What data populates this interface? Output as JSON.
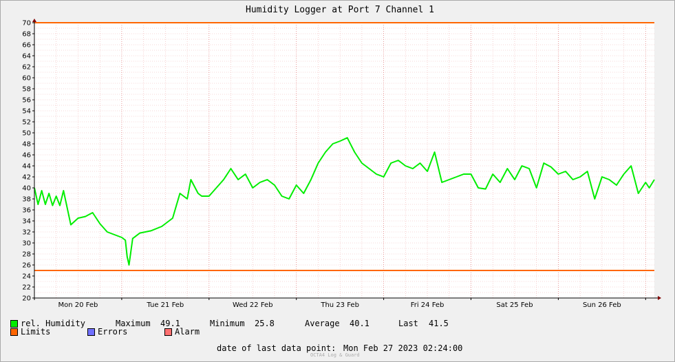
{
  "chart_data": {
    "type": "line",
    "title": "Humidity Logger at Port 7 Channel 1",
    "xlabel": "",
    "ylabel": "",
    "ylim": [
      20,
      70
    ],
    "yticks": [
      20,
      22,
      24,
      26,
      28,
      30,
      32,
      34,
      36,
      38,
      40,
      42,
      44,
      46,
      48,
      50,
      52,
      54,
      56,
      58,
      60,
      62,
      64,
      66,
      68,
      70
    ],
    "x_range": [
      "2023-02-20 00:00",
      "2023-02-27 02:24"
    ],
    "x_tick_labels": [
      {
        "label": "Mon 20 Feb",
        "x": "2023-02-20 12:00"
      },
      {
        "label": "Tue 21 Feb",
        "x": "2023-02-21 12:00"
      },
      {
        "label": "Wed 22 Feb",
        "x": "2023-02-22 12:00"
      },
      {
        "label": "Thu 23 Feb",
        "x": "2023-02-23 12:00"
      },
      {
        "label": "Fri 24 Feb",
        "x": "2023-02-24 12:00"
      },
      {
        "label": "Sat 25 Feb",
        "x": "2023-02-25 12:00"
      },
      {
        "label": "Sun 26 Feb",
        "x": "2023-02-26 12:00"
      }
    ],
    "grid": true,
    "series": [
      {
        "name": "rel. Humidity",
        "color": "#00ee00",
        "x": [
          "2023-02-20 00:00",
          "2023-02-20 01:00",
          "2023-02-20 02:00",
          "2023-02-20 03:00",
          "2023-02-20 04:00",
          "2023-02-20 05:00",
          "2023-02-20 06:00",
          "2023-02-20 07:00",
          "2023-02-20 08:00",
          "2023-02-20 10:00",
          "2023-02-20 12:00",
          "2023-02-20 14:00",
          "2023-02-20 16:00",
          "2023-02-20 18:00",
          "2023-02-20 20:00",
          "2023-02-20 22:00",
          "2023-02-21 00:00",
          "2023-02-21 01:00",
          "2023-02-21 01:30",
          "2023-02-21 02:00",
          "2023-02-21 03:00",
          "2023-02-21 05:00",
          "2023-02-21 08:00",
          "2023-02-21 11:00",
          "2023-02-21 14:00",
          "2023-02-21 16:00",
          "2023-02-21 18:00",
          "2023-02-21 19:00",
          "2023-02-21 21:00",
          "2023-02-21 22:00",
          "2023-02-22 00:00",
          "2023-02-22 02:00",
          "2023-02-22 04:00",
          "2023-02-22 06:00",
          "2023-02-22 08:00",
          "2023-02-22 10:00",
          "2023-02-22 12:00",
          "2023-02-22 14:00",
          "2023-02-22 16:00",
          "2023-02-22 18:00",
          "2023-02-22 20:00",
          "2023-02-22 22:00",
          "2023-02-23 00:00",
          "2023-02-23 02:00",
          "2023-02-23 04:00",
          "2023-02-23 06:00",
          "2023-02-23 08:00",
          "2023-02-23 10:00",
          "2023-02-23 12:00",
          "2023-02-23 14:00",
          "2023-02-23 16:00",
          "2023-02-23 18:00",
          "2023-02-23 20:00",
          "2023-02-23 22:00",
          "2023-02-24 00:00",
          "2023-02-24 02:00",
          "2023-02-24 04:00",
          "2023-02-24 06:00",
          "2023-02-24 08:00",
          "2023-02-24 10:00",
          "2023-02-24 12:00",
          "2023-02-24 14:00",
          "2023-02-24 16:00",
          "2023-02-24 18:00",
          "2023-02-24 20:00",
          "2023-02-24 22:00",
          "2023-02-25 00:00",
          "2023-02-25 02:00",
          "2023-02-25 04:00",
          "2023-02-25 06:00",
          "2023-02-25 08:00",
          "2023-02-25 10:00",
          "2023-02-25 12:00",
          "2023-02-25 14:00",
          "2023-02-25 16:00",
          "2023-02-25 18:00",
          "2023-02-25 20:00",
          "2023-02-25 22:00",
          "2023-02-26 00:00",
          "2023-02-26 02:00",
          "2023-02-26 04:00",
          "2023-02-26 06:00",
          "2023-02-26 08:00",
          "2023-02-26 10:00",
          "2023-02-26 12:00",
          "2023-02-26 14:00",
          "2023-02-26 16:00",
          "2023-02-26 18:00",
          "2023-02-26 20:00",
          "2023-02-26 22:00",
          "2023-02-27 00:00",
          "2023-02-27 01:00",
          "2023-02-27 02:24"
        ],
        "y": [
          40.0,
          37.0,
          39.5,
          37.0,
          39.0,
          36.8,
          38.5,
          36.8,
          39.5,
          33.3,
          34.5,
          34.8,
          35.5,
          33.5,
          32.0,
          31.5,
          31.0,
          30.5,
          27.5,
          26.0,
          30.8,
          31.8,
          32.2,
          33.0,
          34.5,
          39.0,
          38.0,
          41.5,
          39.0,
          38.5,
          38.5,
          40.0,
          41.5,
          43.5,
          41.5,
          42.5,
          40.0,
          41.0,
          41.5,
          40.5,
          38.5,
          38.0,
          40.5,
          39.0,
          41.5,
          44.5,
          46.5,
          48.0,
          48.5,
          49.1,
          46.5,
          44.5,
          43.5,
          42.5,
          42.0,
          44.5,
          45.0,
          44.0,
          43.5,
          44.5,
          43.0,
          46.5,
          41.0,
          41.5,
          42.0,
          42.5,
          42.5,
          40.0,
          39.8,
          42.5,
          41.0,
          43.5,
          41.5,
          44.0,
          43.5,
          40.0,
          44.5,
          43.8,
          42.5,
          43.0,
          41.5,
          42.0,
          43.0,
          38.0,
          42.0,
          41.5,
          40.5,
          42.5,
          44.0,
          39.0,
          41.0,
          40.0,
          41.5
        ]
      }
    ],
    "limits": {
      "name": "Limits",
      "color": "#ff6600",
      "values": [
        70,
        25
      ]
    },
    "legend_placement": "bottom-left"
  },
  "legend": {
    "humidity": "rel. Humidity",
    "limits": "Limits",
    "errors": "Errors",
    "alarm": "Alarm",
    "colors": {
      "humidity": "#00ee00",
      "limits": "#ff6600",
      "errors": "#7070ff",
      "alarm": "#ff7070"
    }
  },
  "stats": {
    "max_label": "Maximum",
    "max_value": "49.1",
    "min_label": "Minimum",
    "min_value": "25.8",
    "avg_label": "Average",
    "avg_value": "40.1",
    "last_label": "Last",
    "last_value": "41.5"
  },
  "footer": {
    "date_label": "date of last data point:",
    "date_value": "Mon Feb 27 2023 02:24:00",
    "credit": "OCTA4 Log & Guard"
  }
}
